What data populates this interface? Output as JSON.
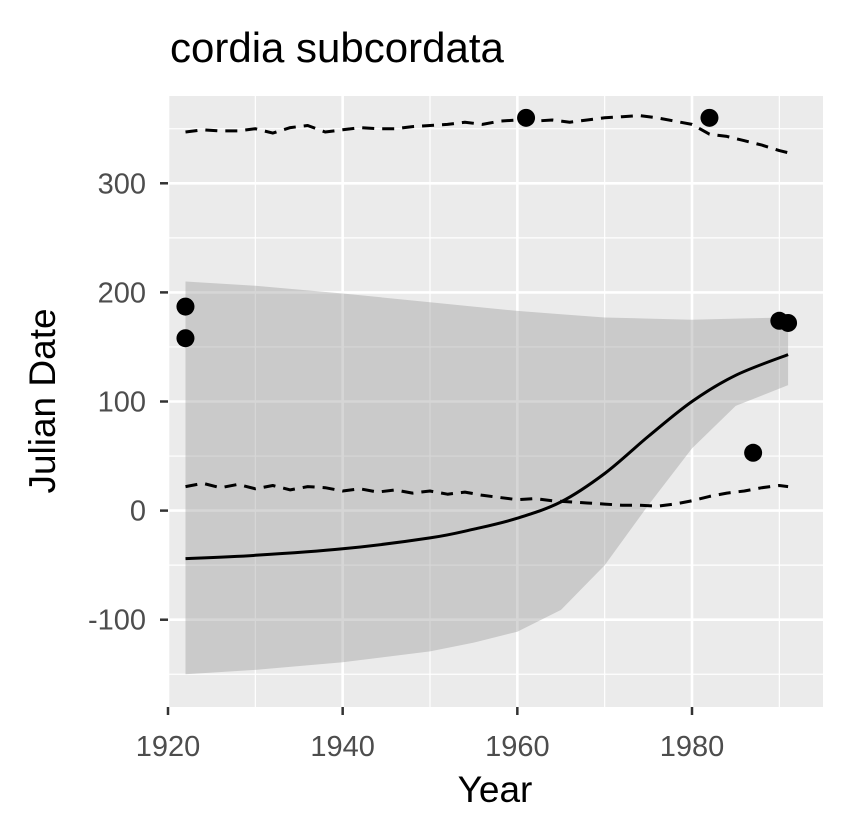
{
  "chart_data": {
    "type": "scatter",
    "title": "cordia subcordata",
    "xlabel": "Year",
    "ylabel": "Julian Date",
    "xlim": [
      1920,
      1995
    ],
    "ylim": [
      -180,
      380
    ],
    "x_ticks": [
      1920,
      1940,
      1960,
      1980
    ],
    "y_ticks": [
      -100,
      0,
      100,
      200,
      300
    ],
    "x_tick_labels": [
      "1920",
      "1940",
      "1960",
      "1980"
    ],
    "y_tick_labels": [
      "-100",
      "0",
      "100",
      "200",
      "300"
    ],
    "grid": true,
    "legend": "none",
    "points": [
      {
        "x": 1922,
        "y": 187
      },
      {
        "x": 1922,
        "y": 158
      },
      {
        "x": 1961,
        "y": 360
      },
      {
        "x": 1982,
        "y": 360
      },
      {
        "x": 1987,
        "y": 53
      },
      {
        "x": 1990,
        "y": 174
      },
      {
        "x": 1991,
        "y": 172
      }
    ],
    "fit_line": {
      "x": [
        1922,
        1930,
        1940,
        1950,
        1955,
        1960,
        1965,
        1970,
        1975,
        1980,
        1985,
        1991
      ],
      "y": [
        -44,
        -41,
        -35,
        -25,
        -17,
        -7,
        8,
        34,
        68,
        100,
        124,
        143
      ]
    },
    "confidence_band": {
      "x": [
        1922,
        1930,
        1940,
        1950,
        1955,
        1960,
        1965,
        1970,
        1975,
        1980,
        1985,
        1991
      ],
      "upper": [
        210,
        206,
        199,
        191,
        187,
        183,
        180,
        177,
        176,
        175,
        176,
        177
      ],
      "lower": [
        -150,
        -146,
        -139,
        -129,
        -121,
        -111,
        -91,
        -50,
        5,
        57,
        96,
        115
      ]
    },
    "upper_dashed": {
      "x": [
        1922,
        1924,
        1926,
        1928,
        1930,
        1932,
        1934,
        1936,
        1938,
        1940,
        1942,
        1944,
        1946,
        1948,
        1950,
        1952,
        1954,
        1956,
        1958,
        1960,
        1962,
        1964,
        1966,
        1968,
        1970,
        1972,
        1974,
        1976,
        1978,
        1980,
        1982,
        1984,
        1986,
        1988,
        1990,
        1991
      ],
      "y": [
        347,
        349,
        348,
        348,
        350,
        346,
        351,
        353,
        347,
        349,
        351,
        350,
        350,
        352,
        353,
        354,
        356,
        354,
        357,
        358,
        357,
        358,
        356,
        358,
        360,
        361,
        362,
        360,
        357,
        354,
        345,
        343,
        339,
        335,
        330,
        328
      ]
    },
    "lower_dashed": {
      "x": [
        1922,
        1924,
        1926,
        1928,
        1930,
        1932,
        1934,
        1936,
        1938,
        1940,
        1942,
        1944,
        1946,
        1948,
        1950,
        1952,
        1954,
        1956,
        1958,
        1960,
        1962,
        1964,
        1966,
        1968,
        1970,
        1972,
        1974,
        1976,
        1978,
        1980,
        1982,
        1984,
        1986,
        1988,
        1990,
        1991
      ],
      "y": [
        22,
        25,
        21,
        24,
        20,
        23,
        19,
        22,
        21,
        18,
        20,
        17,
        19,
        16,
        18,
        15,
        17,
        14,
        12,
        10,
        11,
        9,
        8,
        7,
        6,
        5,
        5,
        4,
        6,
        9,
        13,
        16,
        18,
        21,
        23,
        22
      ]
    }
  }
}
